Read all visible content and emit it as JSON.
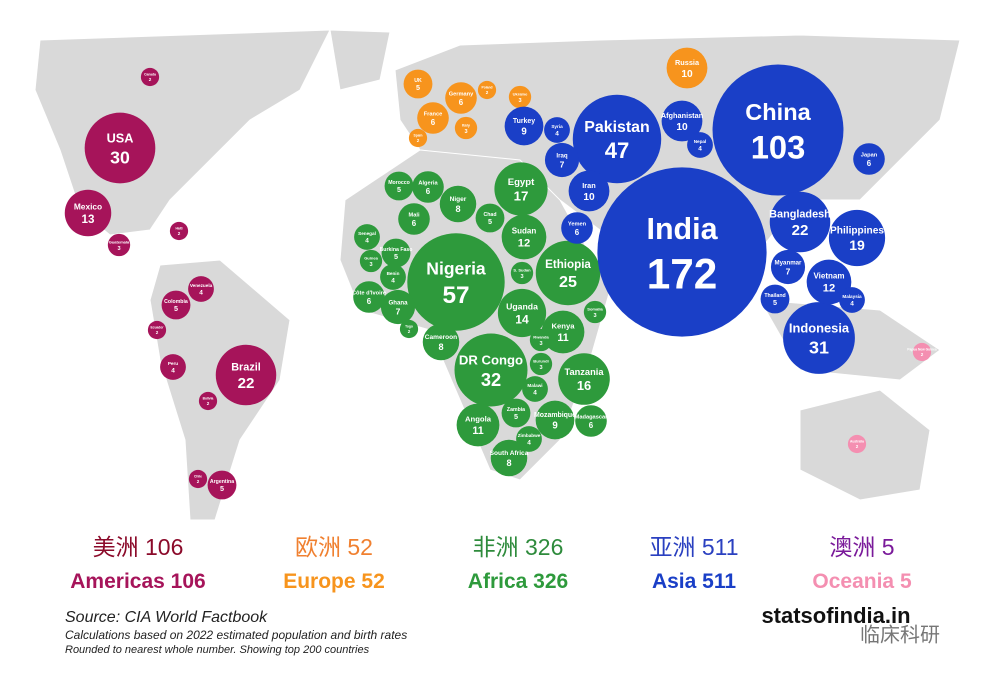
{
  "bubbles": [
    {
      "name": "USA",
      "value": 30,
      "region": 0
    },
    {
      "name": "Canada",
      "value": 2,
      "region": 0
    },
    {
      "name": "Mexico",
      "value": 13,
      "region": 0
    },
    {
      "name": "Brazil",
      "value": 22,
      "region": 0
    },
    {
      "name": "Colombia",
      "value": 5,
      "region": 0
    },
    {
      "name": "Venezuela",
      "value": 4,
      "region": 0
    },
    {
      "name": "Peru",
      "value": 4,
      "region": 0
    },
    {
      "name": "Argentina",
      "value": 5,
      "region": 0
    },
    {
      "name": "Chile",
      "value": 2,
      "region": 0
    },
    {
      "name": "Haiti",
      "value": 2,
      "region": 0
    },
    {
      "name": "Guatemala",
      "value": 3,
      "region": 0
    },
    {
      "name": "Bolivia",
      "value": 2,
      "region": 0
    },
    {
      "name": "Ecuador",
      "value": 2,
      "region": 0
    },
    {
      "name": "UK",
      "value": 5,
      "region": 1
    },
    {
      "name": "Russia",
      "value": 10,
      "region": 1
    },
    {
      "name": "France",
      "value": 6,
      "region": 1
    },
    {
      "name": "Germany",
      "value": 6,
      "region": 1
    },
    {
      "name": "Italy",
      "value": 3,
      "region": 1
    },
    {
      "name": "Spain",
      "value": 2,
      "region": 1
    },
    {
      "name": "Poland",
      "value": 2,
      "region": 1
    },
    {
      "name": "Ukraine",
      "value": 3,
      "region": 1
    },
    {
      "name": "Nigeria",
      "value": 57,
      "region": 2
    },
    {
      "name": "DR Congo",
      "value": 32,
      "region": 2
    },
    {
      "name": "Ethiopia",
      "value": 25,
      "region": 2
    },
    {
      "name": "Egypt",
      "value": 17,
      "region": 2
    },
    {
      "name": "Tanzania",
      "value": 16,
      "region": 2
    },
    {
      "name": "Uganda",
      "value": 14,
      "region": 2
    },
    {
      "name": "Sudan",
      "value": 12,
      "region": 2
    },
    {
      "name": "Angola",
      "value": 11,
      "region": 2
    },
    {
      "name": "Kenya",
      "value": 11,
      "region": 2
    },
    {
      "name": "Niger",
      "value": 8,
      "region": 2
    },
    {
      "name": "South Africa",
      "value": 8,
      "region": 2
    },
    {
      "name": "Mali",
      "value": 6,
      "region": 2
    },
    {
      "name": "Mozambique",
      "value": 9,
      "region": 2
    },
    {
      "name": "Madagascar",
      "value": 6,
      "region": 2
    },
    {
      "name": "Algeria",
      "value": 6,
      "region": 2
    },
    {
      "name": "Ghana",
      "value": 7,
      "region": 2
    },
    {
      "name": "Chad",
      "value": 5,
      "region": 2
    },
    {
      "name": "Cameroon",
      "value": 8,
      "region": 2
    },
    {
      "name": "Zambia",
      "value": 5,
      "region": 2
    },
    {
      "name": "Malawi",
      "value": 4,
      "region": 2
    },
    {
      "name": "Burundi",
      "value": 3,
      "region": 2
    },
    {
      "name": "Benin",
      "value": 4,
      "region": 2
    },
    {
      "name": "Guinea",
      "value": 3,
      "region": 2
    },
    {
      "name": "Somalia",
      "value": 3,
      "region": 2
    },
    {
      "name": "Senegal",
      "value": 4,
      "region": 2
    },
    {
      "name": "Morocco",
      "value": 5,
      "region": 2
    },
    {
      "name": "Zimbabwe",
      "value": 4,
      "region": 2
    },
    {
      "name": "Togo",
      "value": 2,
      "region": 2
    },
    {
      "name": "Côte d'Ivoire",
      "value": 6,
      "region": 2
    },
    {
      "name": "Burkina Faso",
      "value": 5,
      "region": 2
    },
    {
      "name": "Rwanda",
      "value": 3,
      "region": 2
    },
    {
      "name": "S. Sudan",
      "value": 3,
      "region": 2
    },
    {
      "name": "India",
      "value": 172,
      "region": 3
    },
    {
      "name": "China",
      "value": 103,
      "region": 3
    },
    {
      "name": "Pakistan",
      "value": 47,
      "region": 3
    },
    {
      "name": "Indonesia",
      "value": 31,
      "region": 3
    },
    {
      "name": "Bangladesh",
      "value": 22,
      "region": 3
    },
    {
      "name": "Philippines",
      "value": 19,
      "region": 3
    },
    {
      "name": "Iran",
      "value": 10,
      "region": 3
    },
    {
      "name": "Afghanistan",
      "value": 10,
      "region": 3
    },
    {
      "name": "Vietnam",
      "value": 12,
      "region": 3
    },
    {
      "name": "Iraq",
      "value": 7,
      "region": 3
    },
    {
      "name": "Japan",
      "value": 6,
      "region": 3
    },
    {
      "name": "Syria",
      "value": 4,
      "region": 3
    },
    {
      "name": "Turkey",
      "value": 9,
      "region": 3
    },
    {
      "name": "Myanmar",
      "value": 7,
      "region": 3
    },
    {
      "name": "Yemen",
      "value": 6,
      "region": 3
    },
    {
      "name": "Thailand",
      "value": 5,
      "region": 3
    },
    {
      "name": "Nepal",
      "value": 4,
      "region": 3
    },
    {
      "name": "Malaysia",
      "value": 4,
      "region": 3
    },
    {
      "name": "Australia",
      "value": 2,
      "region": 4
    },
    {
      "name": "Papua New Guinea",
      "value": 2,
      "region": 4
    }
  ],
  "totals": [
    {
      "label_cn": "美洲",
      "label": "Americas",
      "value": 106,
      "color": "#a6145a",
      "color_cn": "#8b0a2a"
    },
    {
      "label_cn": "欧洲",
      "label": "Europe",
      "value": 52,
      "color": "#f7941d",
      "color_cn": "#f08030"
    },
    {
      "label_cn": "非洲",
      "label": "Africa",
      "value": 326,
      "color": "#2e9a3c",
      "color_cn": "#2e8b3c"
    },
    {
      "label_cn": "亚洲",
      "label": "Asia",
      "value": 511,
      "color": "#1a3fc7",
      "color_cn": "#2a40c0"
    },
    {
      "label_cn": "澳洲",
      "label": "Oceania",
      "value": 5,
      "color": "#f48fb1",
      "color_cn": "#7a1a9a"
    }
  ],
  "source": "Source: CIA World Factbook",
  "notes": [
    "Calculations based on 2022 estimated population and birth rates",
    "Rounded to nearest whole number. Showing top 200 countries"
  ],
  "brand": "statsofindia.in",
  "watermark": "临床科研"
}
